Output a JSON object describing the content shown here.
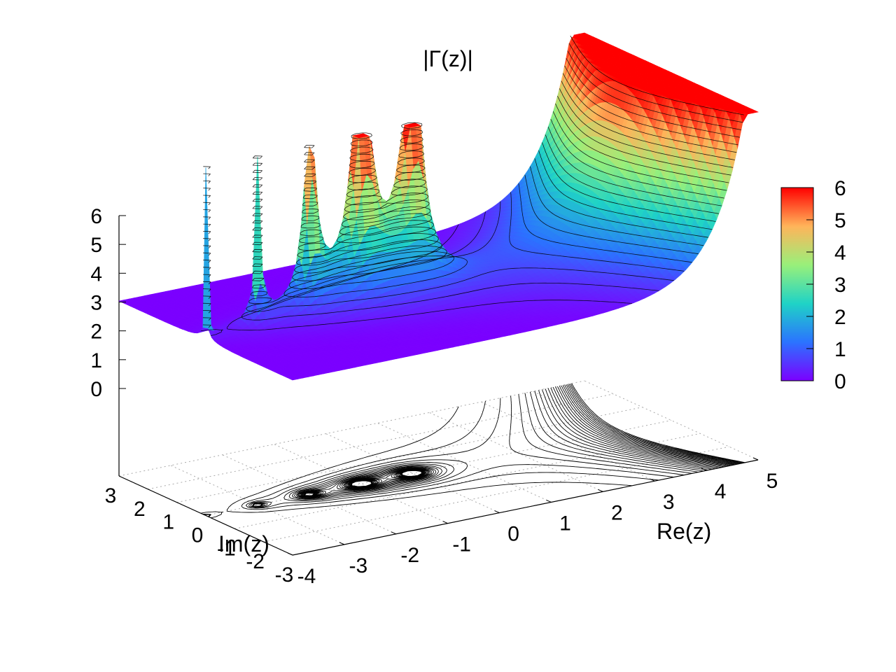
{
  "chart_data": {
    "type": "surface",
    "title": "|Γ(z)|",
    "function": "|Γ(z)|",
    "xlabel": "Re(z)",
    "ylabel": "Im(z)",
    "zlabel": "",
    "xlim": [
      -4,
      5
    ],
    "ylim": [
      -3,
      3
    ],
    "zlim": [
      0,
      6
    ],
    "xticks": [
      "-4",
      "-3",
      "-2",
      "-1",
      "0",
      "1",
      "2",
      "3",
      "4",
      "5"
    ],
    "yticks": [
      "-3",
      "-2",
      "-1",
      "0",
      "1",
      "2",
      "3"
    ],
    "zticks": [
      "0",
      "1",
      "2",
      "3",
      "4",
      "5",
      "6"
    ],
    "colorbar": {
      "range": [
        0,
        6
      ],
      "ticks": [
        "0",
        "1",
        "2",
        "3",
        "4",
        "5",
        "6"
      ],
      "palette": [
        "#7b00ff",
        "#2b73ff",
        "#1fd3c6",
        "#99f07a",
        "#ffb45a",
        "#ff0000"
      ]
    },
    "contours": "drawn on base plane and on surface",
    "poles_re": [
      0,
      -1,
      -2,
      -3
    ],
    "clipped_at": 6,
    "grid": true
  }
}
